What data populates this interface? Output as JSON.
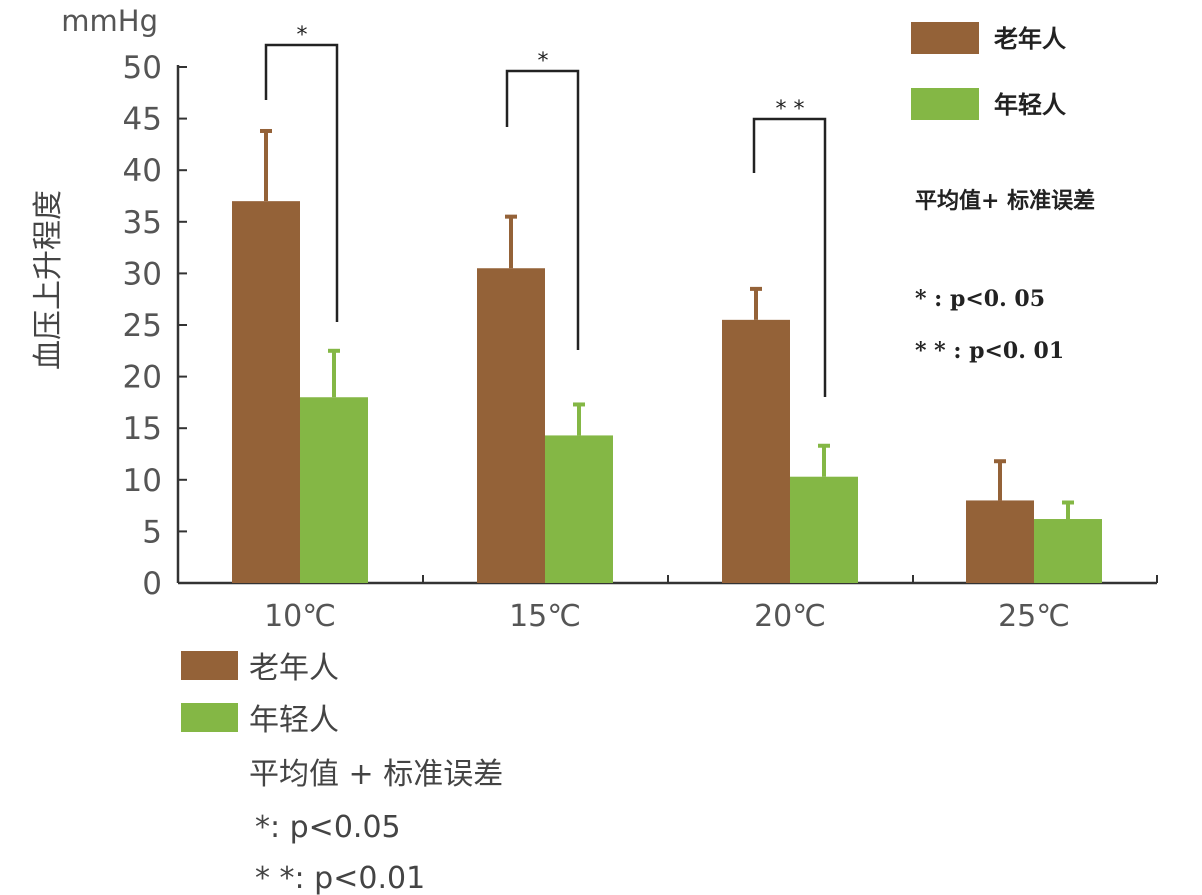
{
  "chart_data": {
    "type": "bar",
    "unit": "mmHg",
    "ylabel": "血压上升程度",
    "ylim": [
      0,
      50
    ],
    "yticks": [
      0,
      5,
      10,
      15,
      20,
      25,
      30,
      35,
      40,
      45,
      50
    ],
    "categories": [
      "10℃",
      "15℃",
      "20℃",
      "25℃"
    ],
    "series": [
      {
        "name": "老年人",
        "color": "#946238",
        "values": [
          37,
          30.5,
          25.5,
          8
        ],
        "error": [
          6.8,
          5,
          3,
          3.8
        ]
      },
      {
        "name": "年轻人",
        "color": "#84b745",
        "values": [
          18,
          14.3,
          10.3,
          6.2
        ],
        "error": [
          4.5,
          3,
          3,
          1.6
        ]
      }
    ],
    "significance": [
      {
        "category": "10℃",
        "marker": "*"
      },
      {
        "category": "15℃",
        "marker": "*"
      },
      {
        "category": "20℃",
        "marker": "* *"
      }
    ],
    "legend_top": {
      "items": [
        "老年人",
        "年轻人"
      ],
      "note": "平均值+ 标准误差",
      "sig1": "* : p<0. 05",
      "sig2": "* * : p<0. 01"
    },
    "legend_bottom": {
      "items": [
        "老年人",
        "年轻人"
      ],
      "note": "平均值 + 标准误差",
      "sig1": "*: p<0.05",
      "sig2": "* *: p<0.01"
    },
    "grid": false,
    "legend_position": "top-right"
  }
}
